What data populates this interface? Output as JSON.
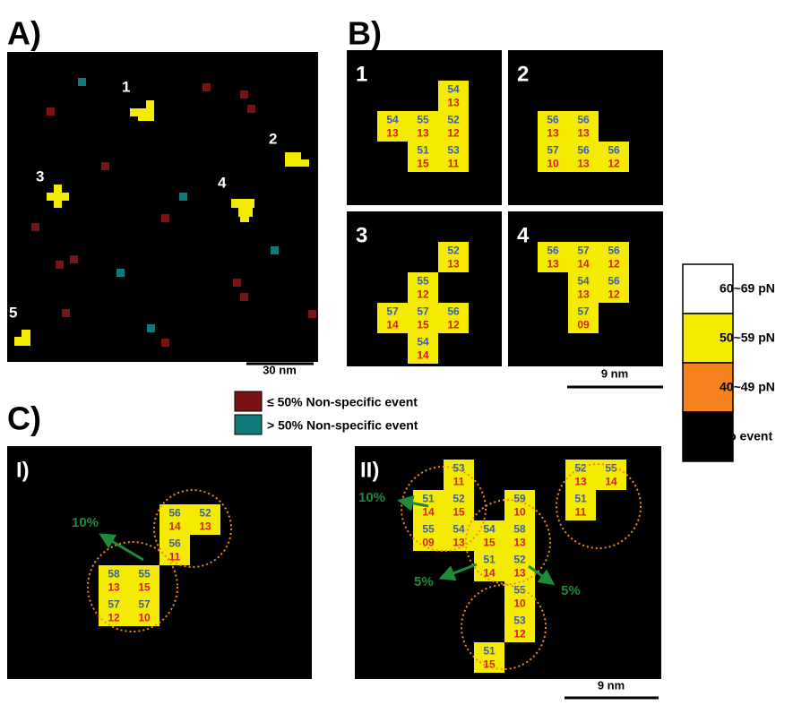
{
  "panels": {
    "A": {
      "label": "A)",
      "clusters": [
        "1",
        "2",
        "3",
        "4",
        "5"
      ],
      "scale_bar": "30 nm",
      "legend": [
        "≤ 50% Non-specific event",
        "> 50% Non-specific event"
      ]
    },
    "B": {
      "label": "B)",
      "scale_bar": "9 nm",
      "boxes": [
        {
          "label": "1",
          "cells": [
            [
              "54",
              "13"
            ],
            [
              "54",
              "13"
            ],
            [
              "55",
              "13"
            ],
            [
              "52",
              "12"
            ],
            [
              "51",
              "15"
            ],
            [
              "53",
              "11"
            ]
          ]
        },
        {
          "label": "2",
          "cells": [
            [
              "56",
              "13"
            ],
            [
              "56",
              "13"
            ],
            [
              "57",
              "10"
            ],
            [
              "56",
              "13"
            ],
            [
              "56",
              "12"
            ]
          ]
        },
        {
          "label": "3",
          "cells": [
            [
              "52",
              "13"
            ],
            [
              "55",
              "12"
            ],
            [
              "57",
              "14"
            ],
            [
              "57",
              "15"
            ],
            [
              "56",
              "12"
            ],
            [
              "54",
              "14"
            ]
          ]
        },
        {
          "label": "4",
          "cells": [
            [
              "56",
              "13"
            ],
            [
              "57",
              "14"
            ],
            [
              "56",
              "12"
            ],
            [
              "54",
              "13"
            ],
            [
              "56",
              "12"
            ],
            [
              "57",
              "09"
            ]
          ]
        }
      ]
    },
    "C": {
      "label": "C)",
      "scale_bar": "9 nm",
      "boxes": [
        {
          "label": "I)",
          "cells": [
            [
              "56",
              "14"
            ],
            [
              "52",
              "13"
            ],
            [
              "56",
              "11"
            ],
            [
              "58",
              "13"
            ],
            [
              "55",
              "15"
            ],
            [
              "57",
              "12"
            ],
            [
              "57",
              "10"
            ]
          ],
          "annotations": [
            "10%"
          ]
        },
        {
          "label": "II)",
          "cells": [
            [
              "53",
              "11"
            ],
            [
              "51",
              "14"
            ],
            [
              "52",
              "15"
            ],
            [
              "59",
              "10"
            ],
            [
              "55",
              "09"
            ],
            [
              "54",
              "13"
            ],
            [
              "54",
              "15"
            ],
            [
              "58",
              "13"
            ],
            [
              "51",
              "14"
            ],
            [
              "52",
              "13"
            ],
            [
              "55",
              "10"
            ],
            [
              "53",
              "12"
            ],
            [
              "51",
              "15"
            ],
            [
              "52",
              "13"
            ],
            [
              "55",
              "14"
            ],
            [
              "51",
              "11"
            ]
          ],
          "annotations": [
            "10%",
            "5%",
            "5%"
          ]
        }
      ]
    }
  },
  "color_legend": [
    "60~69 pN",
    "50~59 pN",
    "40~49 pN",
    "No event"
  ]
}
